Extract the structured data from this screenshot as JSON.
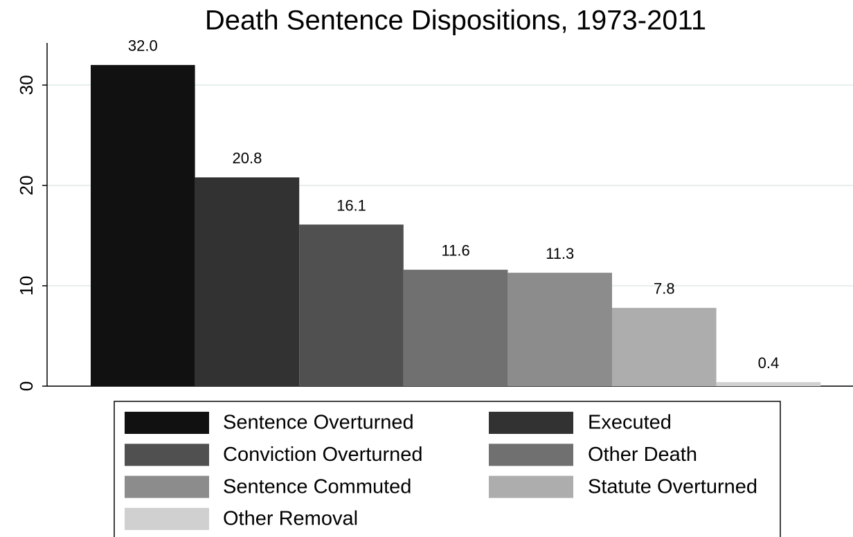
{
  "chart_data": {
    "type": "bar",
    "title": "Death Sentence Dispositions, 1973-2011",
    "series": [
      {
        "name": "Sentence Overturned",
        "color": "#111111",
        "values": [
          32.0
        ],
        "value_labels": [
          "32.0"
        ]
      },
      {
        "name": "Executed",
        "color": "#323232",
        "values": [
          20.8
        ]
      },
      {
        "name": "Conviction Overturned",
        "color": "#505050",
        "values": [
          16.1
        ]
      },
      {
        "name": "Other Death",
        "color": "#707070",
        "values": [
          11.6
        ]
      },
      {
        "name": "Sentence Commuted",
        "color": "#8c8c8c",
        "values": [
          11.3
        ]
      },
      {
        "name": "Statute Overturned",
        "color": "#adadad",
        "values": [
          7.8
        ]
      },
      {
        "name": "Other Removal",
        "color": "#d0d0d0",
        "values": [
          0.4
        ]
      }
    ],
    "ylim": [
      0,
      34.2
    ],
    "yticks": [
      0,
      10,
      20,
      30
    ],
    "grid": true
  }
}
